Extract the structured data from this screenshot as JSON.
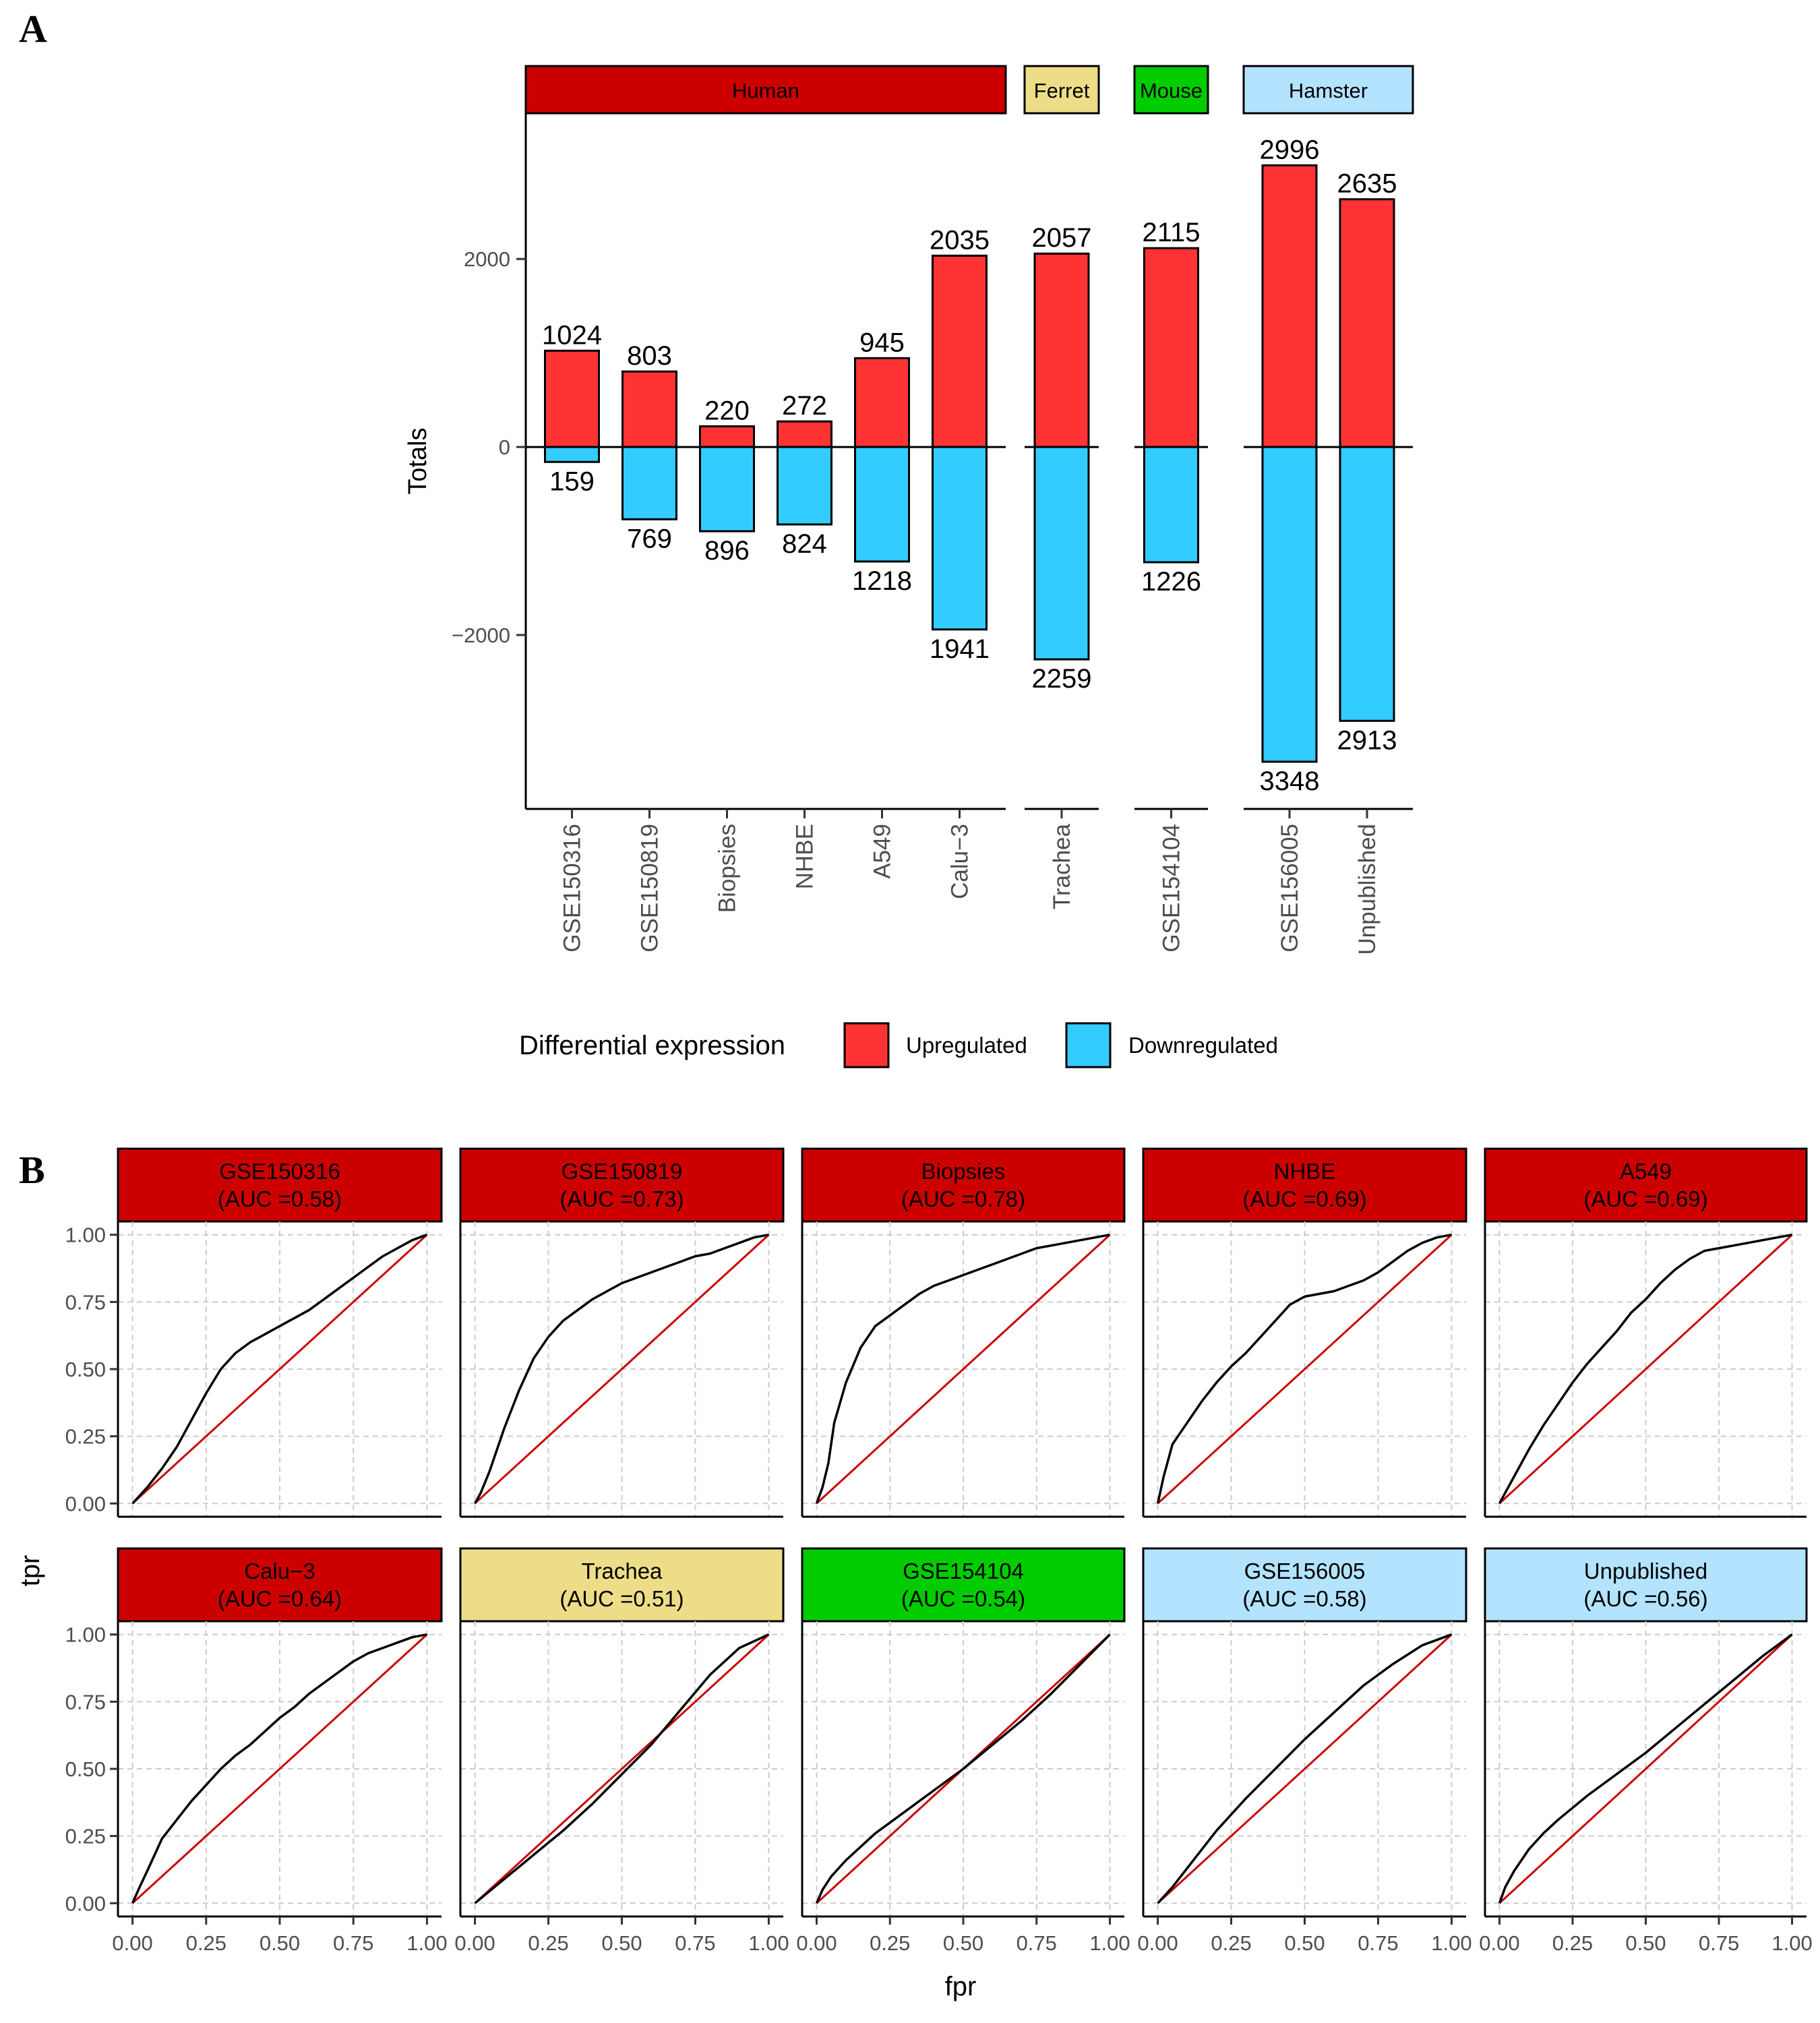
{
  "panels": {
    "a": "A",
    "b": "B"
  },
  "colors": {
    "up": "#ff3333",
    "down": "#33ccff",
    "human": "#cc0000",
    "ferret": "#eedd88",
    "mouse": "#00cc00",
    "hamster": "#b3e3ff",
    "roc_line": "#000000",
    "diag_line": "#cc0000"
  },
  "chart_data": [
    {
      "type": "bar",
      "ylabel": "Totals",
      "ylim": [
        -3850,
        3550
      ],
      "yticks": [
        -2000,
        0,
        2000
      ],
      "ytick_labels": [
        "−2000",
        "0",
        "2000"
      ],
      "grid": false,
      "legend": {
        "title": "Differential expression",
        "position": "bottom",
        "entries": [
          "Upregulated",
          "Downregulated"
        ]
      },
      "facets": [
        {
          "label": "Human",
          "color_key": "human",
          "categories": [
            "GSE150316",
            "GSE150819",
            "Biopsies",
            "NHBE",
            "A549",
            "Calu−3"
          ],
          "up": [
            1024,
            803,
            220,
            272,
            945,
            2035
          ],
          "down": [
            159,
            769,
            896,
            824,
            1218,
            1941
          ]
        },
        {
          "label": "Ferret",
          "color_key": "ferret",
          "categories": [
            "Trachea"
          ],
          "up": [
            2057
          ],
          "down": [
            2259
          ]
        },
        {
          "label": "Mouse",
          "color_key": "mouse",
          "categories": [
            "GSE154104"
          ],
          "up": [
            2115
          ],
          "down": [
            1226
          ]
        },
        {
          "label": "Hamster",
          "color_key": "hamster",
          "categories": [
            "GSE156005",
            "Unpublished"
          ],
          "up": [
            2996,
            2635
          ],
          "down": [
            3348,
            2913
          ]
        }
      ]
    },
    {
      "type": "line",
      "xlabel": "fpr",
      "ylabel": "tpr",
      "xlim": [
        0,
        1
      ],
      "ylim": [
        0,
        1
      ],
      "ticks": [
        0,
        0.25,
        0.5,
        0.75,
        1
      ],
      "tick_labels": [
        "0.00",
        "0.25",
        "0.50",
        "0.75",
        "1.00"
      ],
      "grid": true,
      "facets": [
        {
          "title": "GSE150316",
          "auc": "(AUC =0.58)",
          "color_key": "human",
          "x": [
            0,
            0.05,
            0.1,
            0.15,
            0.2,
            0.25,
            0.3,
            0.35,
            0.4,
            0.45,
            0.5,
            0.55,
            0.6,
            0.65,
            0.7,
            0.75,
            0.8,
            0.85,
            0.9,
            0.95,
            1
          ],
          "y": [
            0,
            0.06,
            0.13,
            0.21,
            0.31,
            0.41,
            0.5,
            0.56,
            0.6,
            0.63,
            0.66,
            0.69,
            0.72,
            0.76,
            0.8,
            0.84,
            0.88,
            0.92,
            0.95,
            0.98,
            1
          ]
        },
        {
          "title": "GSE150819",
          "auc": "(AUC =0.73)",
          "color_key": "human",
          "x": [
            0,
            0.02,
            0.05,
            0.1,
            0.15,
            0.2,
            0.25,
            0.3,
            0.35,
            0.4,
            0.45,
            0.5,
            0.55,
            0.6,
            0.65,
            0.7,
            0.75,
            0.8,
            0.85,
            0.9,
            0.95,
            1
          ],
          "y": [
            0,
            0.04,
            0.12,
            0.28,
            0.42,
            0.54,
            0.62,
            0.68,
            0.72,
            0.76,
            0.79,
            0.82,
            0.84,
            0.86,
            0.88,
            0.9,
            0.92,
            0.93,
            0.95,
            0.97,
            0.99,
            1
          ]
        },
        {
          "title": "Biopsies",
          "auc": "(AUC =0.78)",
          "color_key": "human",
          "x": [
            0,
            0.02,
            0.04,
            0.06,
            0.1,
            0.15,
            0.2,
            0.25,
            0.3,
            0.35,
            0.4,
            0.45,
            0.5,
            0.55,
            0.6,
            0.65,
            0.7,
            0.75,
            0.8,
            0.85,
            0.9,
            0.95,
            1
          ],
          "y": [
            0,
            0.06,
            0.15,
            0.3,
            0.45,
            0.58,
            0.66,
            0.7,
            0.74,
            0.78,
            0.81,
            0.83,
            0.85,
            0.87,
            0.89,
            0.91,
            0.93,
            0.95,
            0.96,
            0.97,
            0.98,
            0.99,
            1
          ]
        },
        {
          "title": "NHBE",
          "auc": "(AUC =0.69)",
          "color_key": "human",
          "x": [
            0,
            0.02,
            0.05,
            0.1,
            0.15,
            0.2,
            0.25,
            0.3,
            0.35,
            0.4,
            0.45,
            0.5,
            0.55,
            0.6,
            0.65,
            0.7,
            0.75,
            0.8,
            0.85,
            0.9,
            0.95,
            1
          ],
          "y": [
            0,
            0.1,
            0.22,
            0.3,
            0.38,
            0.45,
            0.51,
            0.56,
            0.62,
            0.68,
            0.74,
            0.77,
            0.78,
            0.79,
            0.81,
            0.83,
            0.86,
            0.9,
            0.94,
            0.97,
            0.99,
            1
          ]
        },
        {
          "title": "A549",
          "auc": "(AUC =0.69)",
          "color_key": "human",
          "x": [
            0,
            0.02,
            0.05,
            0.1,
            0.15,
            0.2,
            0.25,
            0.3,
            0.35,
            0.4,
            0.45,
            0.5,
            0.55,
            0.6,
            0.65,
            0.7,
            0.75,
            0.8,
            0.85,
            0.9,
            0.95,
            1
          ],
          "y": [
            0,
            0.04,
            0.1,
            0.2,
            0.29,
            0.37,
            0.45,
            0.52,
            0.58,
            0.64,
            0.71,
            0.76,
            0.82,
            0.87,
            0.91,
            0.94,
            0.95,
            0.96,
            0.97,
            0.98,
            0.99,
            1
          ]
        },
        {
          "title": "Calu−3",
          "auc": "(AUC =0.64)",
          "color_key": "human",
          "x": [
            0,
            0.02,
            0.05,
            0.1,
            0.15,
            0.2,
            0.25,
            0.3,
            0.35,
            0.4,
            0.45,
            0.5,
            0.55,
            0.6,
            0.65,
            0.7,
            0.75,
            0.8,
            0.85,
            0.9,
            0.95,
            1
          ],
          "y": [
            0,
            0.05,
            0.12,
            0.24,
            0.31,
            0.38,
            0.44,
            0.5,
            0.55,
            0.59,
            0.64,
            0.69,
            0.73,
            0.78,
            0.82,
            0.86,
            0.9,
            0.93,
            0.95,
            0.97,
            0.99,
            1
          ]
        },
        {
          "title": "Trachea",
          "auc": "(AUC =0.51)",
          "color_key": "ferret",
          "x": [
            0,
            0.1,
            0.2,
            0.3,
            0.4,
            0.5,
            0.6,
            0.7,
            0.8,
            0.9,
            1
          ],
          "y": [
            0,
            0.09,
            0.18,
            0.27,
            0.37,
            0.48,
            0.59,
            0.72,
            0.85,
            0.95,
            1
          ]
        },
        {
          "title": "GSE154104",
          "auc": "(AUC =0.54)",
          "color_key": "mouse",
          "x": [
            0,
            0.02,
            0.05,
            0.1,
            0.15,
            0.2,
            0.3,
            0.4,
            0.5,
            0.6,
            0.7,
            0.8,
            0.9,
            1
          ],
          "y": [
            0,
            0.05,
            0.1,
            0.16,
            0.21,
            0.26,
            0.34,
            0.42,
            0.5,
            0.59,
            0.68,
            0.78,
            0.89,
            1
          ]
        },
        {
          "title": "GSE156005",
          "auc": "(AUC =0.58)",
          "color_key": "hamster",
          "x": [
            0,
            0.05,
            0.1,
            0.15,
            0.2,
            0.3,
            0.4,
            0.5,
            0.6,
            0.7,
            0.8,
            0.9,
            1
          ],
          "y": [
            0,
            0.06,
            0.13,
            0.2,
            0.27,
            0.39,
            0.5,
            0.61,
            0.71,
            0.81,
            0.89,
            0.96,
            1
          ]
        },
        {
          "title": "Unpublished",
          "auc": "(AUC =0.56)",
          "color_key": "hamster",
          "x": [
            0,
            0.02,
            0.05,
            0.1,
            0.15,
            0.2,
            0.3,
            0.4,
            0.5,
            0.6,
            0.7,
            0.8,
            0.9,
            1
          ],
          "y": [
            0,
            0.06,
            0.12,
            0.2,
            0.26,
            0.31,
            0.4,
            0.48,
            0.56,
            0.65,
            0.74,
            0.83,
            0.92,
            1
          ]
        }
      ]
    }
  ]
}
